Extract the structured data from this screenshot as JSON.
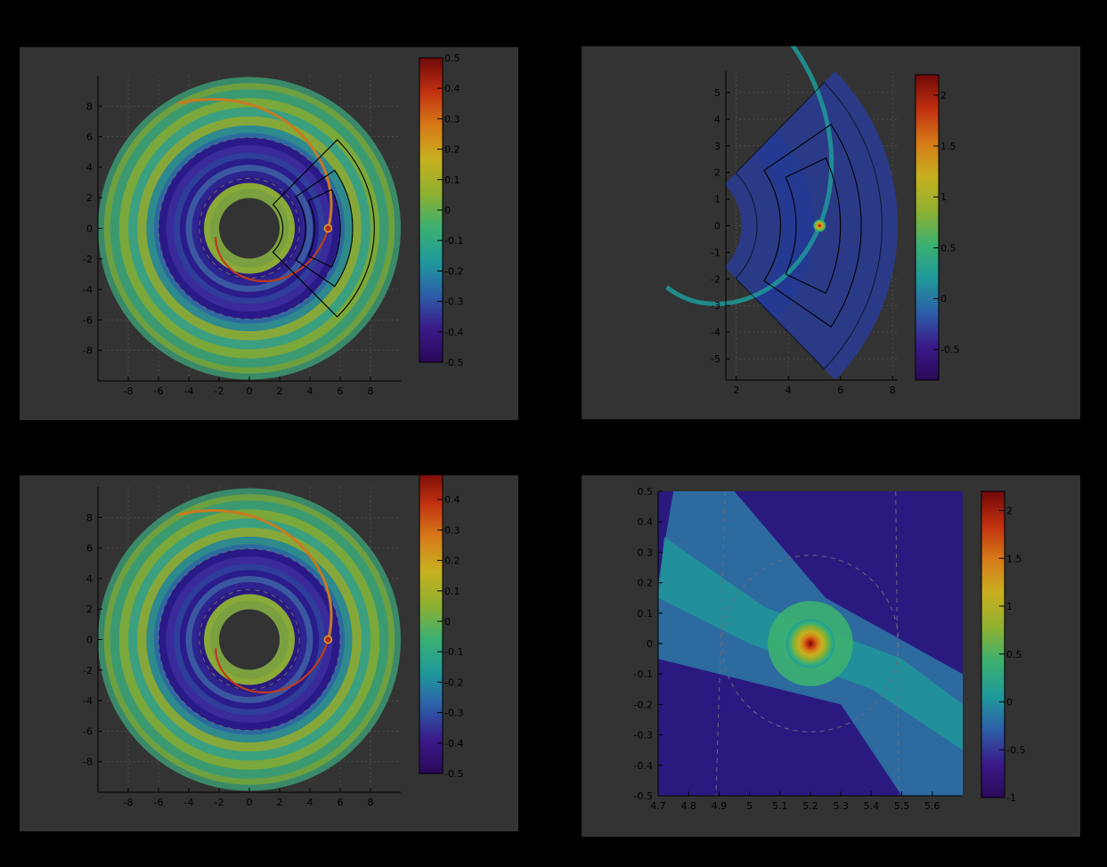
{
  "chart_data": [
    {
      "type": "heatmap",
      "panel": "top-left",
      "title": "",
      "xlabel": "",
      "ylabel": "",
      "xlim": [
        -10,
        10
      ],
      "ylim": [
        -10,
        10
      ],
      "xticks": [
        -8,
        -6,
        -4,
        -2,
        0,
        2,
        4,
        6,
        8
      ],
      "yticks": [
        8,
        6,
        4,
        2,
        0,
        -2,
        -4,
        -6,
        -8
      ],
      "colorbar": {
        "min": -0.5,
        "max": 0.5,
        "ticks": [
          "0.5",
          "0.4",
          "0.3",
          "0.2",
          "0.1",
          "0",
          "-0.1",
          "-0.2",
          "-0.3",
          "-0.4",
          "-0.5"
        ]
      },
      "disk": {
        "r_inner": 2,
        "r_outer": 10,
        "planet": [
          5.2,
          0
        ],
        "gap_dashed_radii": [
          3.3,
          6.0
        ]
      },
      "grid": true,
      "overlay": "nested annular sectors (mesh refinement levels)"
    },
    {
      "type": "heatmap",
      "panel": "top-right",
      "title": "",
      "xlabel": "",
      "ylabel": "",
      "xlim": [
        1.6,
        8.2
      ],
      "ylim": [
        -5.8,
        5.8
      ],
      "xticks": [
        2,
        4,
        6,
        8
      ],
      "yticks": [
        5,
        4,
        3,
        2,
        1,
        0,
        -1,
        -2,
        -3,
        -4,
        -5
      ],
      "colorbar": {
        "min": -0.8,
        "max": 2.2,
        "ticks": [
          "2",
          "1.5",
          "1",
          "0.5",
          "0",
          "-0.5"
        ]
      },
      "sector": {
        "r_inner": 2.2,
        "r_outer": 8.2,
        "half_angle_deg": 45,
        "planet": [
          5.2,
          0
        ]
      },
      "grid": true
    },
    {
      "type": "heatmap",
      "panel": "bottom-left",
      "title": "",
      "xlabel": "",
      "ylabel": "",
      "xlim": [
        -10,
        10
      ],
      "ylim": [
        -10,
        10
      ],
      "xticks": [
        -8,
        -6,
        -4,
        -2,
        0,
        2,
        4,
        6,
        8
      ],
      "yticks": [
        8,
        6,
        4,
        2,
        0,
        -2,
        -4,
        -6,
        -8
      ],
      "colorbar": {
        "min": -0.5,
        "max": 0.5,
        "ticks": [
          "0.5",
          "0.4",
          "0.3",
          "0.2",
          "0.1",
          "0",
          "-0.1",
          "-0.2",
          "-0.3",
          "-0.4",
          "-0.5"
        ]
      },
      "disk": {
        "r_inner": 2,
        "r_outer": 10,
        "planet": [
          5.2,
          0
        ],
        "gap_dashed_radii": [
          3.3,
          6.0
        ]
      },
      "grid": true
    },
    {
      "type": "heatmap",
      "panel": "bottom-right",
      "title": "",
      "xlabel": "",
      "ylabel": "",
      "xlim": [
        4.7,
        5.7
      ],
      "ylim": [
        -0.5,
        0.5
      ],
      "xticks": [
        "4.7",
        "4.8",
        "4.9",
        "5",
        "5.1",
        "5.2",
        "5.3",
        "5.4",
        "5.5",
        "5.6"
      ],
      "yticks": [
        "0.5",
        "0.4",
        "0.3",
        "0.2",
        "0.1",
        "0",
        "-0.1",
        "-0.2",
        "-0.3",
        "-0.4",
        "-0.5"
      ],
      "colorbar": {
        "min": -1,
        "max": 2.2,
        "ticks": [
          "2",
          "1.5",
          "1",
          "0.5",
          "0",
          "-0.5",
          "-1"
        ]
      },
      "planet": [
        5.2,
        0
      ],
      "hill_radius": 0.29,
      "grid": false
    }
  ],
  "colors": {
    "page_background": "#000000",
    "panel_background": "#333333",
    "colormap": [
      "#2a0858",
      "#3a1a8a",
      "#2c5fa8",
      "#1f9a9a",
      "#3cb070",
      "#8fb030",
      "#c8b020",
      "#d67a18",
      "#c03010",
      "#700808"
    ]
  }
}
